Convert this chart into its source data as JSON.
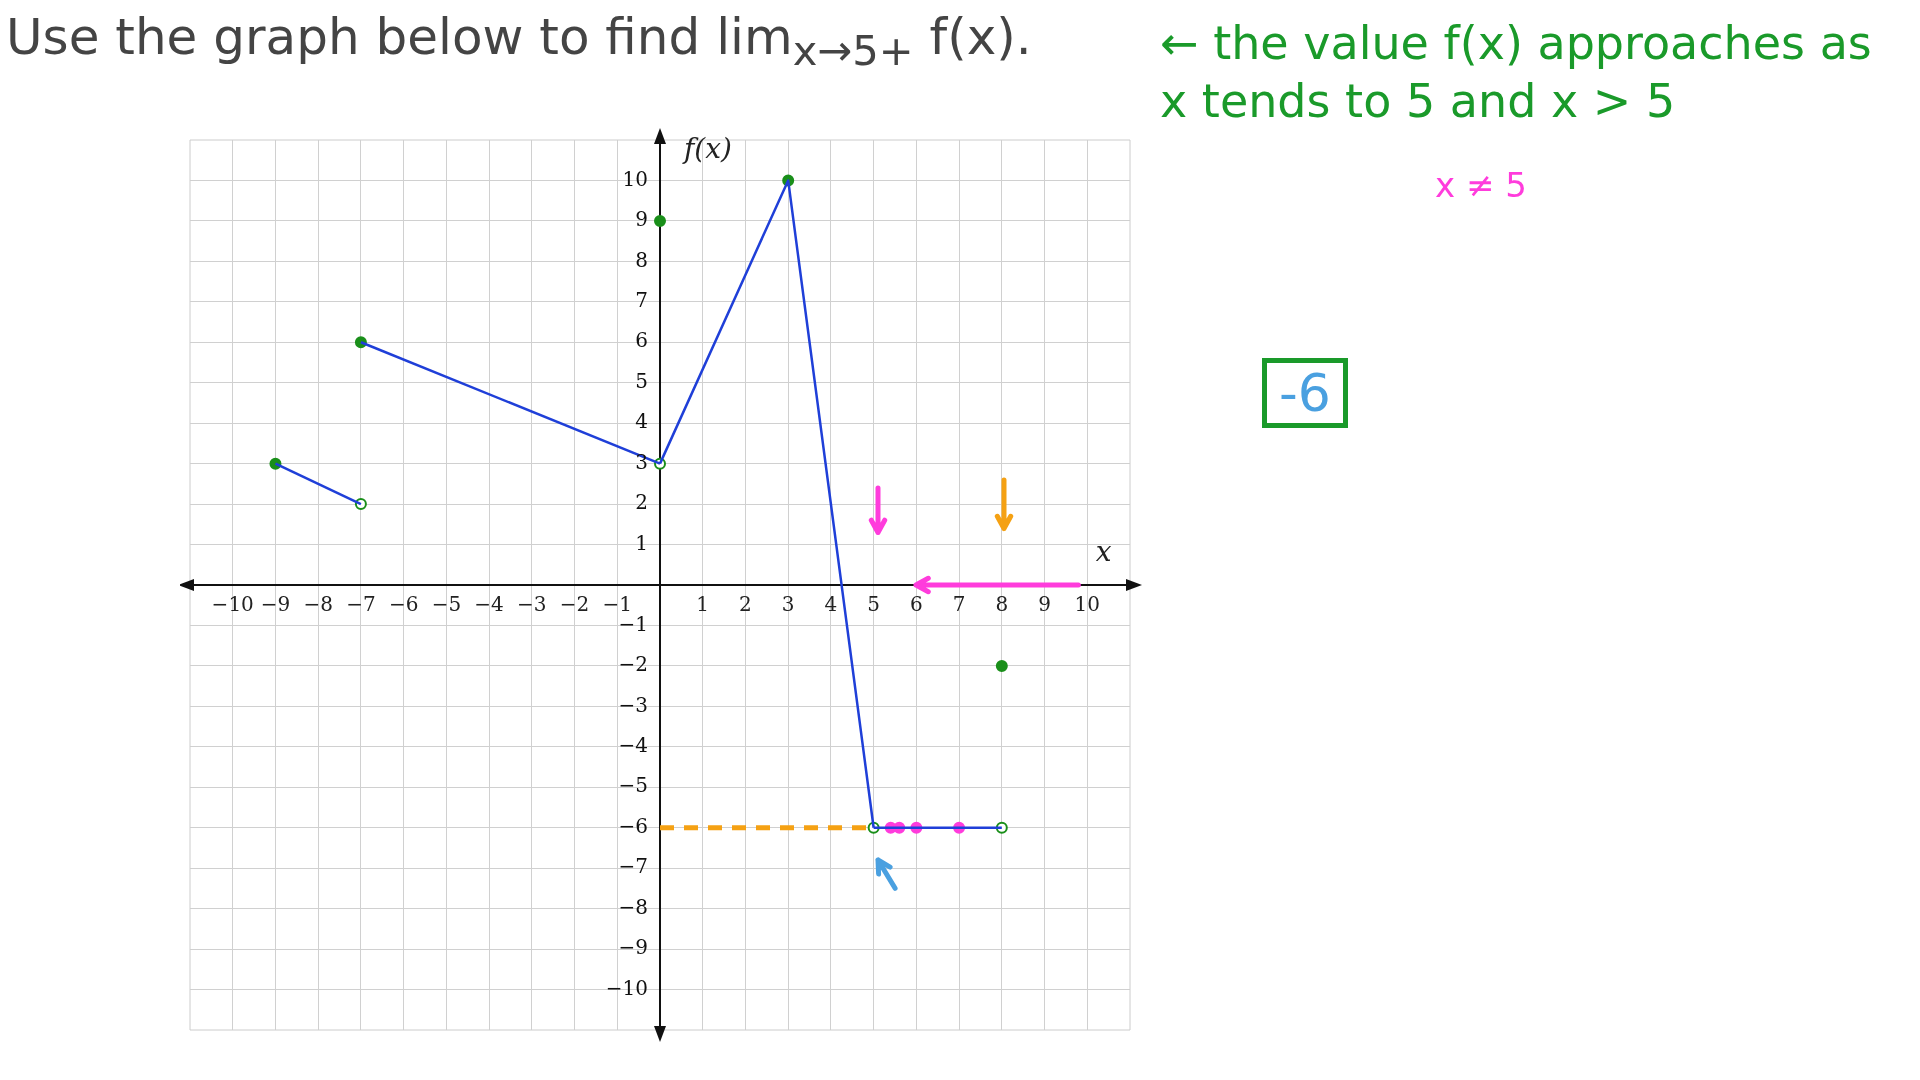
{
  "chart_data": {
    "type": "line",
    "title": "Use the graph below to find lim$_{x→5+}$ f(x).",
    "xlabel": "x",
    "ylabel": "f(x)",
    "xlim": [
      -11,
      11
    ],
    "ylim": [
      -11,
      11
    ],
    "xticks": [
      -10,
      -9,
      -8,
      -7,
      -6,
      -5,
      -4,
      -3,
      -2,
      -1,
      {
        "value": 0,
        "label": null
      },
      1,
      2,
      3,
      4,
      5,
      6,
      7,
      8,
      9,
      10
    ],
    "yticks": [
      -10,
      -9,
      -8,
      -7,
      -6,
      -5,
      -4,
      -3,
      -2,
      -1,
      {
        "value": 0,
        "label": null
      },
      1,
      2,
      3,
      4,
      5,
      6,
      7,
      8,
      9,
      10
    ],
    "grid": true,
    "legend": false,
    "series": [
      {
        "color": "#1f3fd8",
        "x": [
          -9,
          -7
        ],
        "values": [
          3,
          2
        ]
      },
      {
        "color": "#1f3fd8",
        "x": [
          -7,
          0
        ],
        "values": [
          6,
          3
        ]
      },
      {
        "color": "#1f3fd8",
        "x": [
          0,
          3,
          5
        ],
        "values": [
          3,
          10,
          -6
        ]
      },
      {
        "color": "#1f3fd8",
        "x": [
          5,
          8
        ],
        "values": [
          -6,
          -6
        ]
      },
      {
        "color": "#f5a113",
        "line_style": "dashed",
        "x": [
          0,
          5
        ],
        "values": [
          -6,
          -6
        ]
      },
      {
        "type": "scatter",
        "color": "#1a8f1a",
        "marker": "circle",
        "x": [
          -9,
          -7,
          3,
          0,
          8
        ],
        "values": [
          3,
          6,
          10,
          9,
          -2
        ]
      },
      {
        "type": "scatter",
        "color": "#ffffff",
        "marker": "circle",
        "x": [
          -7,
          0,
          5,
          8
        ],
        "values": [
          2,
          3,
          -6,
          -6
        ]
      },
      {
        "type": "scatter",
        "color": "#ff3cdc",
        "marker": "circle",
        "x": [
          5.4,
          5.6,
          6,
          7
        ],
        "values": [
          -6,
          -6,
          -6,
          -6
        ]
      }
    ],
    "annotations": [
      "← the value f(x) approaches as x tends to 5 and x > 5",
      "x ≠ 5",
      "-6"
    ]
  }
}
